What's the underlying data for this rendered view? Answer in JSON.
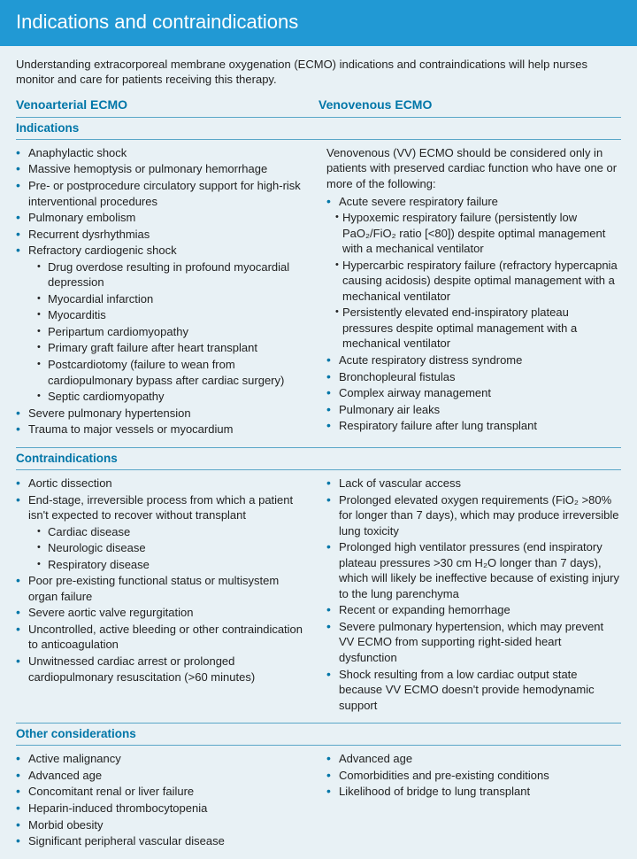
{
  "banner": {
    "title": "Indications and contraindications"
  },
  "intro": "Understanding extracorporeal membrane oxygenation (ECMO) indications and contraindications will help nurses monitor and care for patients receiving this therapy.",
  "columns": {
    "left": "Venoarterial ECMO",
    "right": "Venovenous ECMO"
  },
  "colors": {
    "banner_bg": "#2199d4",
    "accent": "#0076a8",
    "page_bg": "#e8f1f5",
    "rule": "#5aa7c8"
  },
  "typography": {
    "banner_fontsize_pt": 17,
    "body_fontsize_pt": 10,
    "col_head_fontsize_pt": 11,
    "section_title_fontsize_pt": 10.5
  },
  "sections": {
    "indications": {
      "title": "Indications",
      "va": [
        "Anaphylactic shock",
        "Massive hemoptysis or pulmonary hemorrhage",
        "Pre- or postprocedure circulatory support for high-risk interventional procedures",
        "Pulmonary embolism",
        "Recurrent dysrhythmias",
        "Refractory cardiogenic shock",
        "Severe pulmonary hypertension",
        "Trauma to major vessels or myocardium"
      ],
      "va_refractory_sub": [
        "Drug overdose resulting in profound myocardial depression",
        "Myocardial infarction",
        "Myocarditis",
        "Peripartum cardiomyopathy",
        "Primary graft failure after heart transplant",
        "Postcardiotomy (failure to wean from cardiopulmonary bypass after cardiac surgery)",
        "Septic cardiomyopathy"
      ],
      "vv_intro": "Venovenous (VV) ECMO should be considered only in patients with preserved cardiac function who have one or more of the following:",
      "vv_acute_label": "Acute severe respiratory failure",
      "vv_acute_sub": [
        "Hypoxemic respiratory failure (persistently low PaO₂/FiO₂ ratio [<80]) despite optimal management with a mechanical ventilator",
        "Hypercarbic respiratory failure (refractory hypercapnia causing acidosis) despite optimal management with a mechanical ventilator",
        "Persistently elevated end-inspiratory plateau pressures despite optimal management with a mechanical ventilator"
      ],
      "vv_list": [
        "Acute respiratory distress syndrome",
        "Bronchopleural fistulas",
        "Complex airway management",
        "Pulmonary air leaks",
        "Respiratory failure after lung transplant"
      ]
    },
    "contra": {
      "title": "Contraindications",
      "va": [
        "Aortic dissection",
        "End-stage, irreversible process from which a patient isn't expected to recover without transplant",
        "Poor pre-existing functional status or multisystem organ failure",
        "Severe aortic valve regurgitation",
        "Uncontrolled, active bleeding or other contraindication to anticoagulation",
        "Unwitnessed cardiac arrest or prolonged cardiopulmonary resuscitation (>60 minutes)"
      ],
      "va_endstage_sub": [
        "Cardiac disease",
        "Neurologic disease",
        "Respiratory disease"
      ],
      "vv": [
        "Lack of vascular access",
        "Prolonged elevated oxygen requirements (FiO₂ >80% for longer than 7 days), which may produce irreversible lung toxicity",
        "Prolonged high ventilator pressures (end inspiratory plateau pressures >30 cm H₂O longer than 7 days), which will likely be ineffective because of existing injury to the lung parenchyma",
        "Recent or expanding hemorrhage",
        "Severe pulmonary hypertension, which may prevent VV ECMO from supporting right-sided heart dysfunction",
        "Shock resulting from a low cardiac output state because VV ECMO doesn't provide hemodynamic support"
      ]
    },
    "other": {
      "title": "Other considerations",
      "va": [
        "Active malignancy",
        "Advanced age",
        "Concomitant renal or liver failure",
        "Heparin-induced thrombocytopenia",
        "Morbid obesity",
        "Significant peripheral vascular disease"
      ],
      "vv": [
        "Advanced age",
        "Comorbidities and pre-existing conditions",
        "Likelihood of bridge to lung transplant"
      ]
    }
  }
}
